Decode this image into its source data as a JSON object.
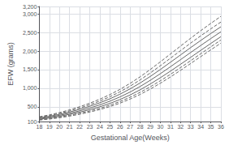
{
  "chart_data": {
    "type": "line",
    "xlabel": "Gestational Age(Weeks)",
    "ylabel": "EFW (grams)",
    "x": [
      18,
      19,
      20,
      21,
      22,
      23,
      24,
      25,
      26,
      27,
      28,
      29,
      30,
      31,
      32,
      33,
      34,
      35,
      36
    ],
    "series": [
      {
        "color": "#666666",
        "line_style": "dashed",
        "values": [
          140,
          168,
          204,
          248,
          298,
          357,
          425,
          504,
          597,
          706,
          832,
          976,
          1133,
          1302,
          1480,
          1664,
          1849,
          2033,
          2213
        ]
      },
      {
        "color": "#666666",
        "line_style": "dashed",
        "values": [
          152,
          183,
          222,
          270,
          324,
          386,
          458,
          542,
          641,
          756,
          888,
          1037,
          1200,
          1373,
          1554,
          1740,
          1927,
          2113,
          2296
        ]
      },
      {
        "color": "#666666",
        "line_style": "solid",
        "values": [
          166,
          200,
          243,
          295,
          354,
          421,
          499,
          590,
          695,
          817,
          957,
          1113,
          1281,
          1459,
          1643,
          1830,
          2018,
          2204,
          2387
        ]
      },
      {
        "color": "#666666",
        "line_style": "solid",
        "values": [
          182,
          220,
          268,
          325,
          390,
          465,
          551,
          650,
          765,
          896,
          1046,
          1212,
          1390,
          1577,
          1768,
          1960,
          2149,
          2336,
          2518
        ]
      },
      {
        "color": "#666666",
        "line_style": "solid",
        "values": [
          200,
          242,
          295,
          358,
          430,
          512,
          606,
          714,
          839,
          981,
          1141,
          1316,
          1503,
          1698,
          1895,
          2092,
          2284,
          2472,
          2653
        ]
      },
      {
        "color": "#666666",
        "line_style": "dashed",
        "values": [
          215,
          261,
          319,
          387,
          464,
          553,
          654,
          770,
          903,
          1055,
          1224,
          1409,
          1605,
          1807,
          2011,
          2213,
          2409,
          2598,
          2781
        ]
      },
      {
        "color": "#666666",
        "line_style": "dashed",
        "values": [
          230,
          280,
          342,
          416,
          499,
          595,
          703,
          827,
          968,
          1129,
          1308,
          1503,
          1709,
          1921,
          2134,
          2344,
          2548,
          2745,
          2934
        ]
      }
    ],
    "xlim": [
      18,
      36
    ],
    "ylim": [
      100,
      3200
    ],
    "xticks": [
      18,
      19,
      20,
      21,
      22,
      23,
      24,
      25,
      26,
      27,
      28,
      29,
      30,
      31,
      32,
      33,
      34,
      35,
      36
    ],
    "yticks": [
      100,
      500,
      1000,
      1500,
      2000,
      2500,
      3000,
      3200
    ],
    "grid": true
  }
}
